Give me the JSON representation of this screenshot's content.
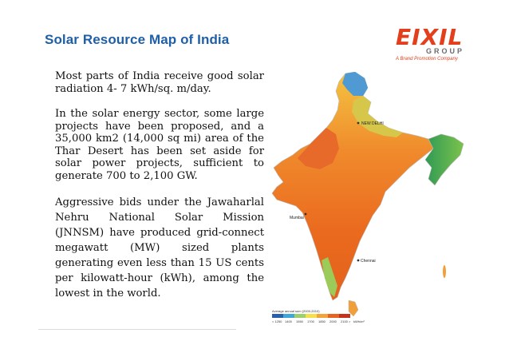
{
  "slide": {
    "title": "Solar Resource Map of India",
    "paragraphs": [
      "Most parts of India receive good solar radiation 4- 7 kWh/sq. m/day.",
      "In the solar energy sector, some large projects have been proposed, and a 35,000 km2 (14,000 sq mi) area of the Thar Desert has been set aside for solar power projects, sufficient to generate 700 to 2,100 GW.",
      "Aggressive bids under the Jawaharlal Nehru National Solar Mission (JNNSM) have produced grid-connect megawatt (MW) sized plants generating even less than 15 US cents per kilowatt-hour (kWh), among the lowest in the world."
    ]
  },
  "logo": {
    "word": "EIXIL",
    "group": "GROUP",
    "tagline": "A Brand Promotion Company"
  },
  "map": {
    "cities": [
      "NEW DELHI",
      "Mumbai",
      "Chennai"
    ],
    "legend_title": "Average annual sum (2000-2010)",
    "legend_ticks": [
      "< 1250",
      "1400",
      "1550",
      "1700",
      "1850",
      "2000",
      "2100 >",
      "kWh/m²"
    ],
    "legend_colors": [
      "#2a5fb0",
      "#3fa6d8",
      "#9bd06b",
      "#f4e04a",
      "#f2a33a",
      "#e5641f",
      "#c8321a"
    ]
  }
}
